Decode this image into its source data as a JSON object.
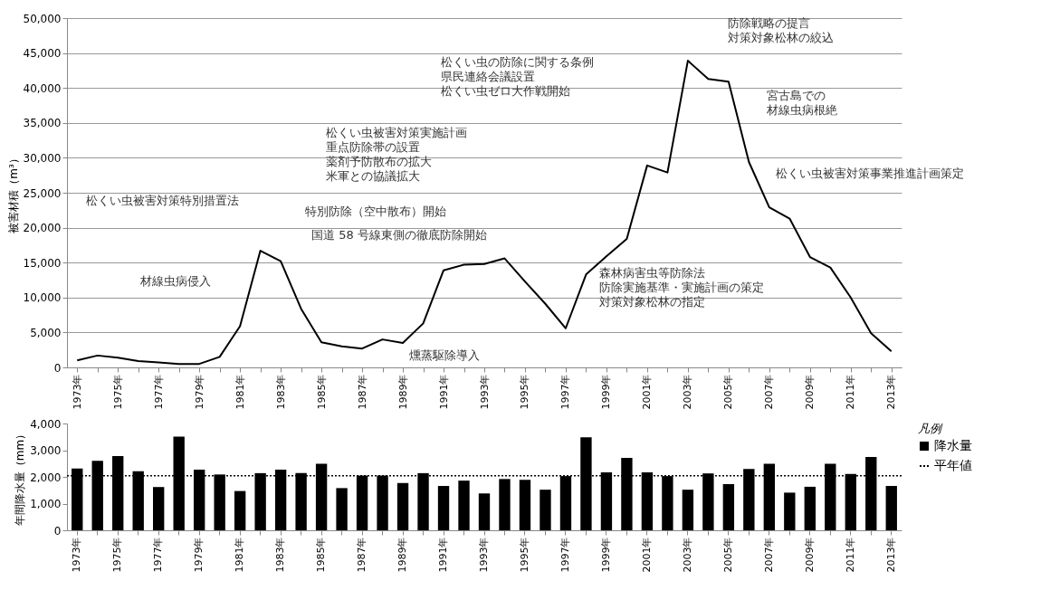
{
  "chart_data": [
    {
      "type": "line",
      "ylabel": "被害材積（m³）",
      "categories": [
        "1973年",
        null,
        "1975年",
        null,
        "1977年",
        null,
        "1979年",
        null,
        "1981年",
        null,
        "1983年",
        null,
        "1985年",
        null,
        "1987年",
        null,
        "1989年",
        null,
        "1991年",
        null,
        "1993年",
        null,
        "1995年",
        null,
        "1997年",
        null,
        "1999年",
        null,
        "2001年",
        null,
        "2003年",
        null,
        "2005年",
        null,
        "2007年",
        null,
        "2009年",
        null,
        "2011年",
        null,
        "2013年"
      ],
      "series": [
        {
          "color": "#000000",
          "values": [
            1000,
            1700,
            1400,
            900,
            700,
            500,
            500,
            1500,
            5900,
            16700,
            15200,
            8400,
            3600,
            3000,
            2700,
            4000,
            3500,
            6300,
            13900,
            14700,
            14800,
            15600,
            12300,
            9100,
            5600,
            13300,
            15900,
            18400,
            28900,
            27900,
            43900,
            41300,
            40900,
            29400,
            22900,
            21300,
            15800,
            14300,
            10000,
            4900,
            2300
          ]
        }
      ],
      "ylim": [
        0,
        50000
      ],
      "yticks": [
        0,
        {
          "value": 5000,
          "label": "5,000"
        },
        {
          "value": 10000,
          "label": "10,000"
        },
        {
          "value": 15000,
          "label": "15,000"
        },
        {
          "value": 20000,
          "label": "20,000"
        },
        {
          "value": 25000,
          "label": "25,000"
        },
        {
          "value": 30000,
          "label": "30,000"
        },
        {
          "value": 35000,
          "label": "35,000"
        },
        {
          "value": 40000,
          "label": "40,000"
        },
        {
          "value": 45000,
          "label": "45,000"
        },
        {
          "value": 50000,
          "label": "50,000"
        }
      ],
      "grid": "y",
      "annotations": [
        "松くい虫被害対策特別措置法",
        "材線虫病侵入",
        "松くい虫被害対策実施計画",
        "重点防除帯の設置",
        "薬剤予防散布の拡大",
        "米軍との協議拡大",
        "特別防除（空中散布）開始",
        "国道 58 号線東側の徹底防除開始",
        "燻蒸駆除導入",
        "松くい虫の防除に関する条例",
        "県民連絡会議設置",
        "松くい虫ゼロ大作戦開始",
        "森林病害虫等防除法",
        "防除実施基準・実施計画の策定",
        "対策対象松林の指定",
        "防除戦略の提言",
        "対策対象松林の絞込",
        "宮古島での",
        "材線虫病根絶",
        "松くい虫被害対策事業推進計画策定"
      ]
    },
    {
      "type": "bar",
      "ylabel": "年間降水量（mm）",
      "legend_title": "凡例",
      "legend": "right",
      "categories": [
        "1973年",
        null,
        "1975年",
        null,
        "1977年",
        null,
        "1979年",
        null,
        "1981年",
        null,
        "1983年",
        null,
        "1985年",
        null,
        "1987年",
        null,
        "1989年",
        null,
        "1991年",
        null,
        "1993年",
        null,
        "1995年",
        null,
        "1997年",
        null,
        "1999年",
        null,
        "2001年",
        null,
        "2003年",
        null,
        "2005年",
        null,
        "2007年",
        null,
        "2009年",
        null,
        "2011年",
        null,
        "2013年"
      ],
      "series": [
        {
          "name": "降水量",
          "color": "#000000",
          "values": [
            2310,
            2600,
            2780,
            2210,
            1620,
            3510,
            2270,
            2090,
            1470,
            2140,
            2270,
            2140,
            2490,
            1580,
            2050,
            2050,
            1770,
            2140,
            1660,
            1860,
            1380,
            1920,
            1890,
            1520,
            2030,
            3480,
            2170,
            2710,
            2170,
            2030,
            1520,
            2130,
            1730,
            2300,
            2490,
            1410,
            1630,
            2490,
            2110,
            2750,
            1660
          ]
        }
      ],
      "ylim": [
        0,
        4000
      ],
      "yticks": [
        0,
        {
          "value": 1000,
          "label": "1,000"
        },
        {
          "value": 2000,
          "label": "2,000"
        },
        {
          "value": 3000,
          "label": "3,000"
        },
        {
          "value": 4000,
          "label": "4,000"
        }
      ],
      "ref_lines": [
        {
          "axis": "y",
          "value": 2040,
          "label": "平年値",
          "line_style": "dotted",
          "color": "#000000"
        }
      ]
    }
  ]
}
